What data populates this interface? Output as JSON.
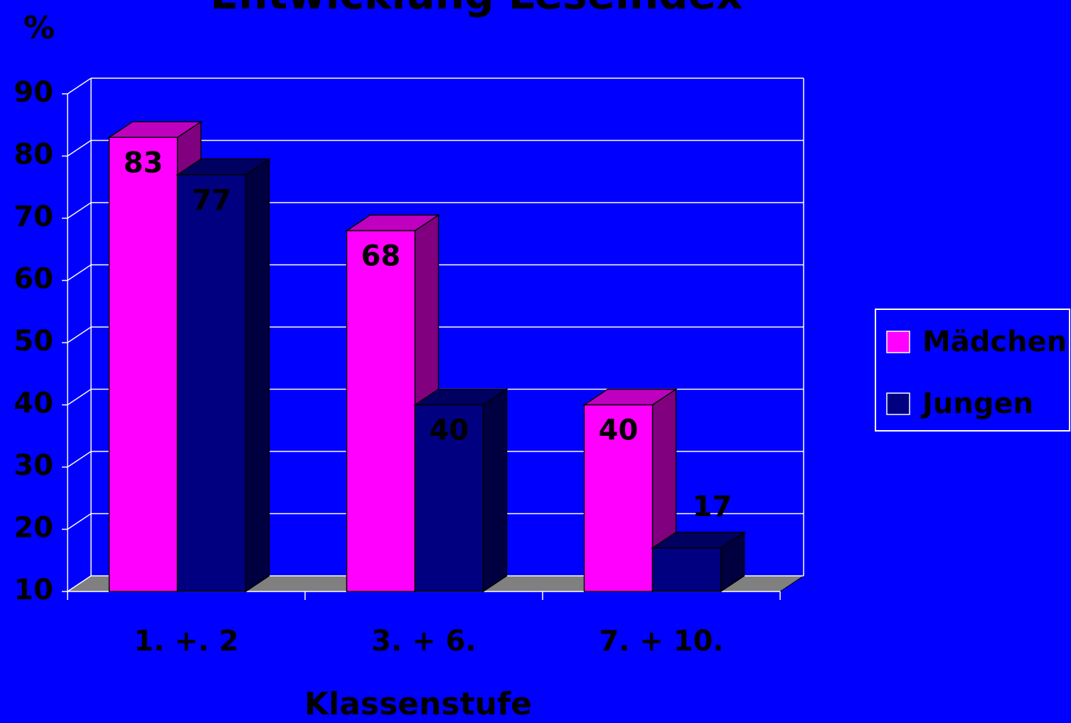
{
  "chart_data": {
    "type": "bar",
    "title": "Entwicklung Leseindex",
    "y_label": "%",
    "x_label": "Klassenstufe",
    "categories": [
      "1. +. 2",
      "3. + 6.",
      "7. + 10."
    ],
    "series": [
      {
        "name": "Mädchen",
        "color": "#ff00ff",
        "values": [
          83,
          68,
          40
        ]
      },
      {
        "name": "Jungen",
        "color": "#000080",
        "values": [
          77,
          40,
          17
        ]
      }
    ],
    "ylim": [
      10,
      90
    ],
    "yticks": [
      10,
      20,
      30,
      40,
      50,
      60,
      70,
      80,
      90
    ],
    "grid": true,
    "legend": "right"
  }
}
